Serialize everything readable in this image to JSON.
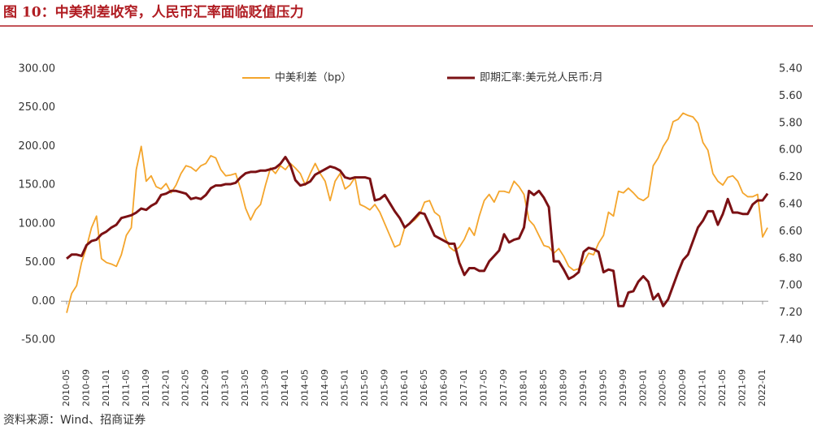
{
  "chart_data": {
    "type": "line",
    "title": "图 10：中美利差收窄，人民币汇率面临贬值压力",
    "source": "资料来源：Wind、招商证券",
    "categories": [
      "2010-05",
      null,
      null,
      null,
      "2010-09",
      null,
      null,
      null,
      "2011-01",
      null,
      null,
      null,
      "2011-05",
      null,
      null,
      null,
      "2011-09",
      null,
      null,
      null,
      "2012-01",
      null,
      null,
      null,
      "2012-05",
      null,
      null,
      null,
      "2012-09",
      null,
      null,
      null,
      "2013-01",
      null,
      null,
      null,
      "2013-05",
      null,
      null,
      null,
      "2013-09",
      null,
      null,
      null,
      "2014-01",
      null,
      null,
      null,
      "2014-05",
      null,
      null,
      null,
      "2014-09",
      null,
      null,
      null,
      "2015-01",
      null,
      null,
      null,
      "2015-05",
      null,
      null,
      null,
      "2015-09",
      null,
      null,
      null,
      "2016-01",
      null,
      null,
      null,
      "2016-05",
      null,
      null,
      null,
      "2016-09",
      null,
      null,
      null,
      "2017-01",
      null,
      null,
      null,
      "2017-05",
      null,
      null,
      null,
      "2017-09",
      null,
      null,
      null,
      "2018-01",
      null,
      null,
      null,
      "2018-05",
      null,
      null,
      null,
      "2018-09",
      null,
      null,
      null,
      "2019-01",
      null,
      null,
      null,
      "2019-05",
      null,
      null,
      null,
      "2019-09",
      null,
      null,
      null,
      "2020-01",
      null,
      null,
      null,
      "2020-05",
      null,
      null,
      null,
      "2020-09",
      null,
      null,
      null,
      "2021-01",
      null,
      null,
      null,
      "2021-05",
      null,
      null,
      null,
      "2021-09",
      null,
      null,
      null,
      "2022-01",
      null
    ],
    "series": [
      {
        "name": "中美利差（bp）",
        "color": "#f4a52c",
        "values": [
          -15,
          10,
          20,
          50,
          70,
          95,
          110,
          55,
          50,
          48,
          45,
          60,
          85,
          95,
          170,
          200,
          155,
          162,
          148,
          145,
          152,
          140,
          150,
          165,
          175,
          173,
          168,
          175,
          178,
          188,
          185,
          170,
          162,
          163,
          165,
          145,
          120,
          105,
          118,
          125,
          150,
          172,
          165,
          175,
          170,
          178,
          172,
          165,
          150,
          165,
          178,
          165,
          155,
          130,
          155,
          165,
          145,
          150,
          160,
          125,
          122,
          118,
          125,
          115,
          100,
          85,
          70,
          73,
          95,
          100,
          105,
          112,
          128,
          130,
          115,
          110,
          85,
          70,
          65,
          70,
          80,
          95,
          85,
          110,
          130,
          138,
          128,
          142,
          142,
          140,
          155,
          148,
          138,
          105,
          98,
          85,
          72,
          70,
          62,
          68,
          58,
          45,
          40,
          42,
          50,
          62,
          60,
          75,
          85,
          115,
          110,
          142,
          140,
          146,
          140,
          133,
          130,
          135,
          175,
          185,
          200,
          210,
          232,
          235,
          243,
          240,
          238,
          230,
          205,
          195,
          165,
          155,
          150,
          160,
          162,
          155,
          140,
          135,
          135,
          138,
          83,
          95
        ]
      },
      {
        "name": "即期汇率:美元兑人民币:月",
        "color": "#7b1114",
        "axis": "y2",
        "values": [
          6.8,
          6.77,
          6.77,
          6.78,
          6.7,
          6.67,
          6.66,
          6.62,
          6.6,
          6.57,
          6.55,
          6.5,
          6.49,
          6.48,
          6.46,
          6.43,
          6.44,
          6.41,
          6.39,
          6.33,
          6.32,
          6.3,
          6.3,
          6.31,
          6.32,
          6.36,
          6.35,
          6.36,
          6.33,
          6.28,
          6.26,
          6.26,
          6.25,
          6.25,
          6.24,
          6.2,
          6.17,
          6.16,
          6.16,
          6.15,
          6.15,
          6.14,
          6.13,
          6.1,
          6.05,
          6.11,
          6.22,
          6.26,
          6.25,
          6.23,
          6.18,
          6.16,
          6.14,
          6.12,
          6.13,
          6.15,
          6.2,
          6.21,
          6.2,
          6.2,
          6.2,
          6.21,
          6.37,
          6.36,
          6.33,
          6.39,
          6.45,
          6.5,
          6.57,
          6.54,
          6.5,
          6.46,
          6.47,
          6.55,
          6.63,
          6.65,
          6.67,
          6.69,
          6.69,
          6.83,
          6.92,
          6.87,
          6.87,
          6.89,
          6.89,
          6.82,
          6.78,
          6.74,
          6.62,
          6.68,
          6.66,
          6.65,
          6.57,
          6.3,
          6.33,
          6.3,
          6.35,
          6.42,
          6.82,
          6.82,
          6.88,
          6.95,
          6.93,
          6.9,
          6.75,
          6.72,
          6.73,
          6.75,
          6.9,
          6.88,
          6.89,
          7.15,
          7.15,
          7.05,
          7.04,
          6.97,
          6.93,
          6.97,
          7.1,
          7.06,
          7.15,
          7.1,
          7.0,
          6.9,
          6.81,
          6.77,
          6.67,
          6.57,
          6.52,
          6.45,
          6.45,
          6.55,
          6.47,
          6.36,
          6.46,
          6.46,
          6.47,
          6.47,
          6.4,
          6.37,
          6.37,
          6.32
        ]
      }
    ],
    "ylim": [
      -50,
      300
    ],
    "yticks": [
      {
        "value": -50,
        "label": "-50.00"
      },
      {
        "value": 0,
        "label": "0.00"
      },
      {
        "value": 50,
        "label": "50.00"
      },
      {
        "value": 100,
        "label": "100.00"
      },
      {
        "value": 150,
        "label": "150.00"
      },
      {
        "value": 200,
        "label": "200.00"
      },
      {
        "value": 250,
        "label": "250.00"
      },
      {
        "value": 300,
        "label": "300.00"
      }
    ],
    "y2lim": [
      7.4,
      5.4
    ],
    "y2ticks": [
      {
        "value": 5.4,
        "label": "5.40"
      },
      {
        "value": 5.6,
        "label": "5.60"
      },
      {
        "value": 5.8,
        "label": "5.80"
      },
      {
        "value": 6.0,
        "label": "6.00"
      },
      {
        "value": 6.2,
        "label": "6.20"
      },
      {
        "value": 6.4,
        "label": "6.40"
      },
      {
        "value": 6.6,
        "label": "6.60"
      },
      {
        "value": 6.8,
        "label": "6.80"
      },
      {
        "value": 7.0,
        "label": "7.00"
      },
      {
        "value": 7.2,
        "label": "7.20"
      },
      {
        "value": 7.4,
        "label": "7.40"
      }
    ],
    "legend": "top",
    "grid": false
  }
}
